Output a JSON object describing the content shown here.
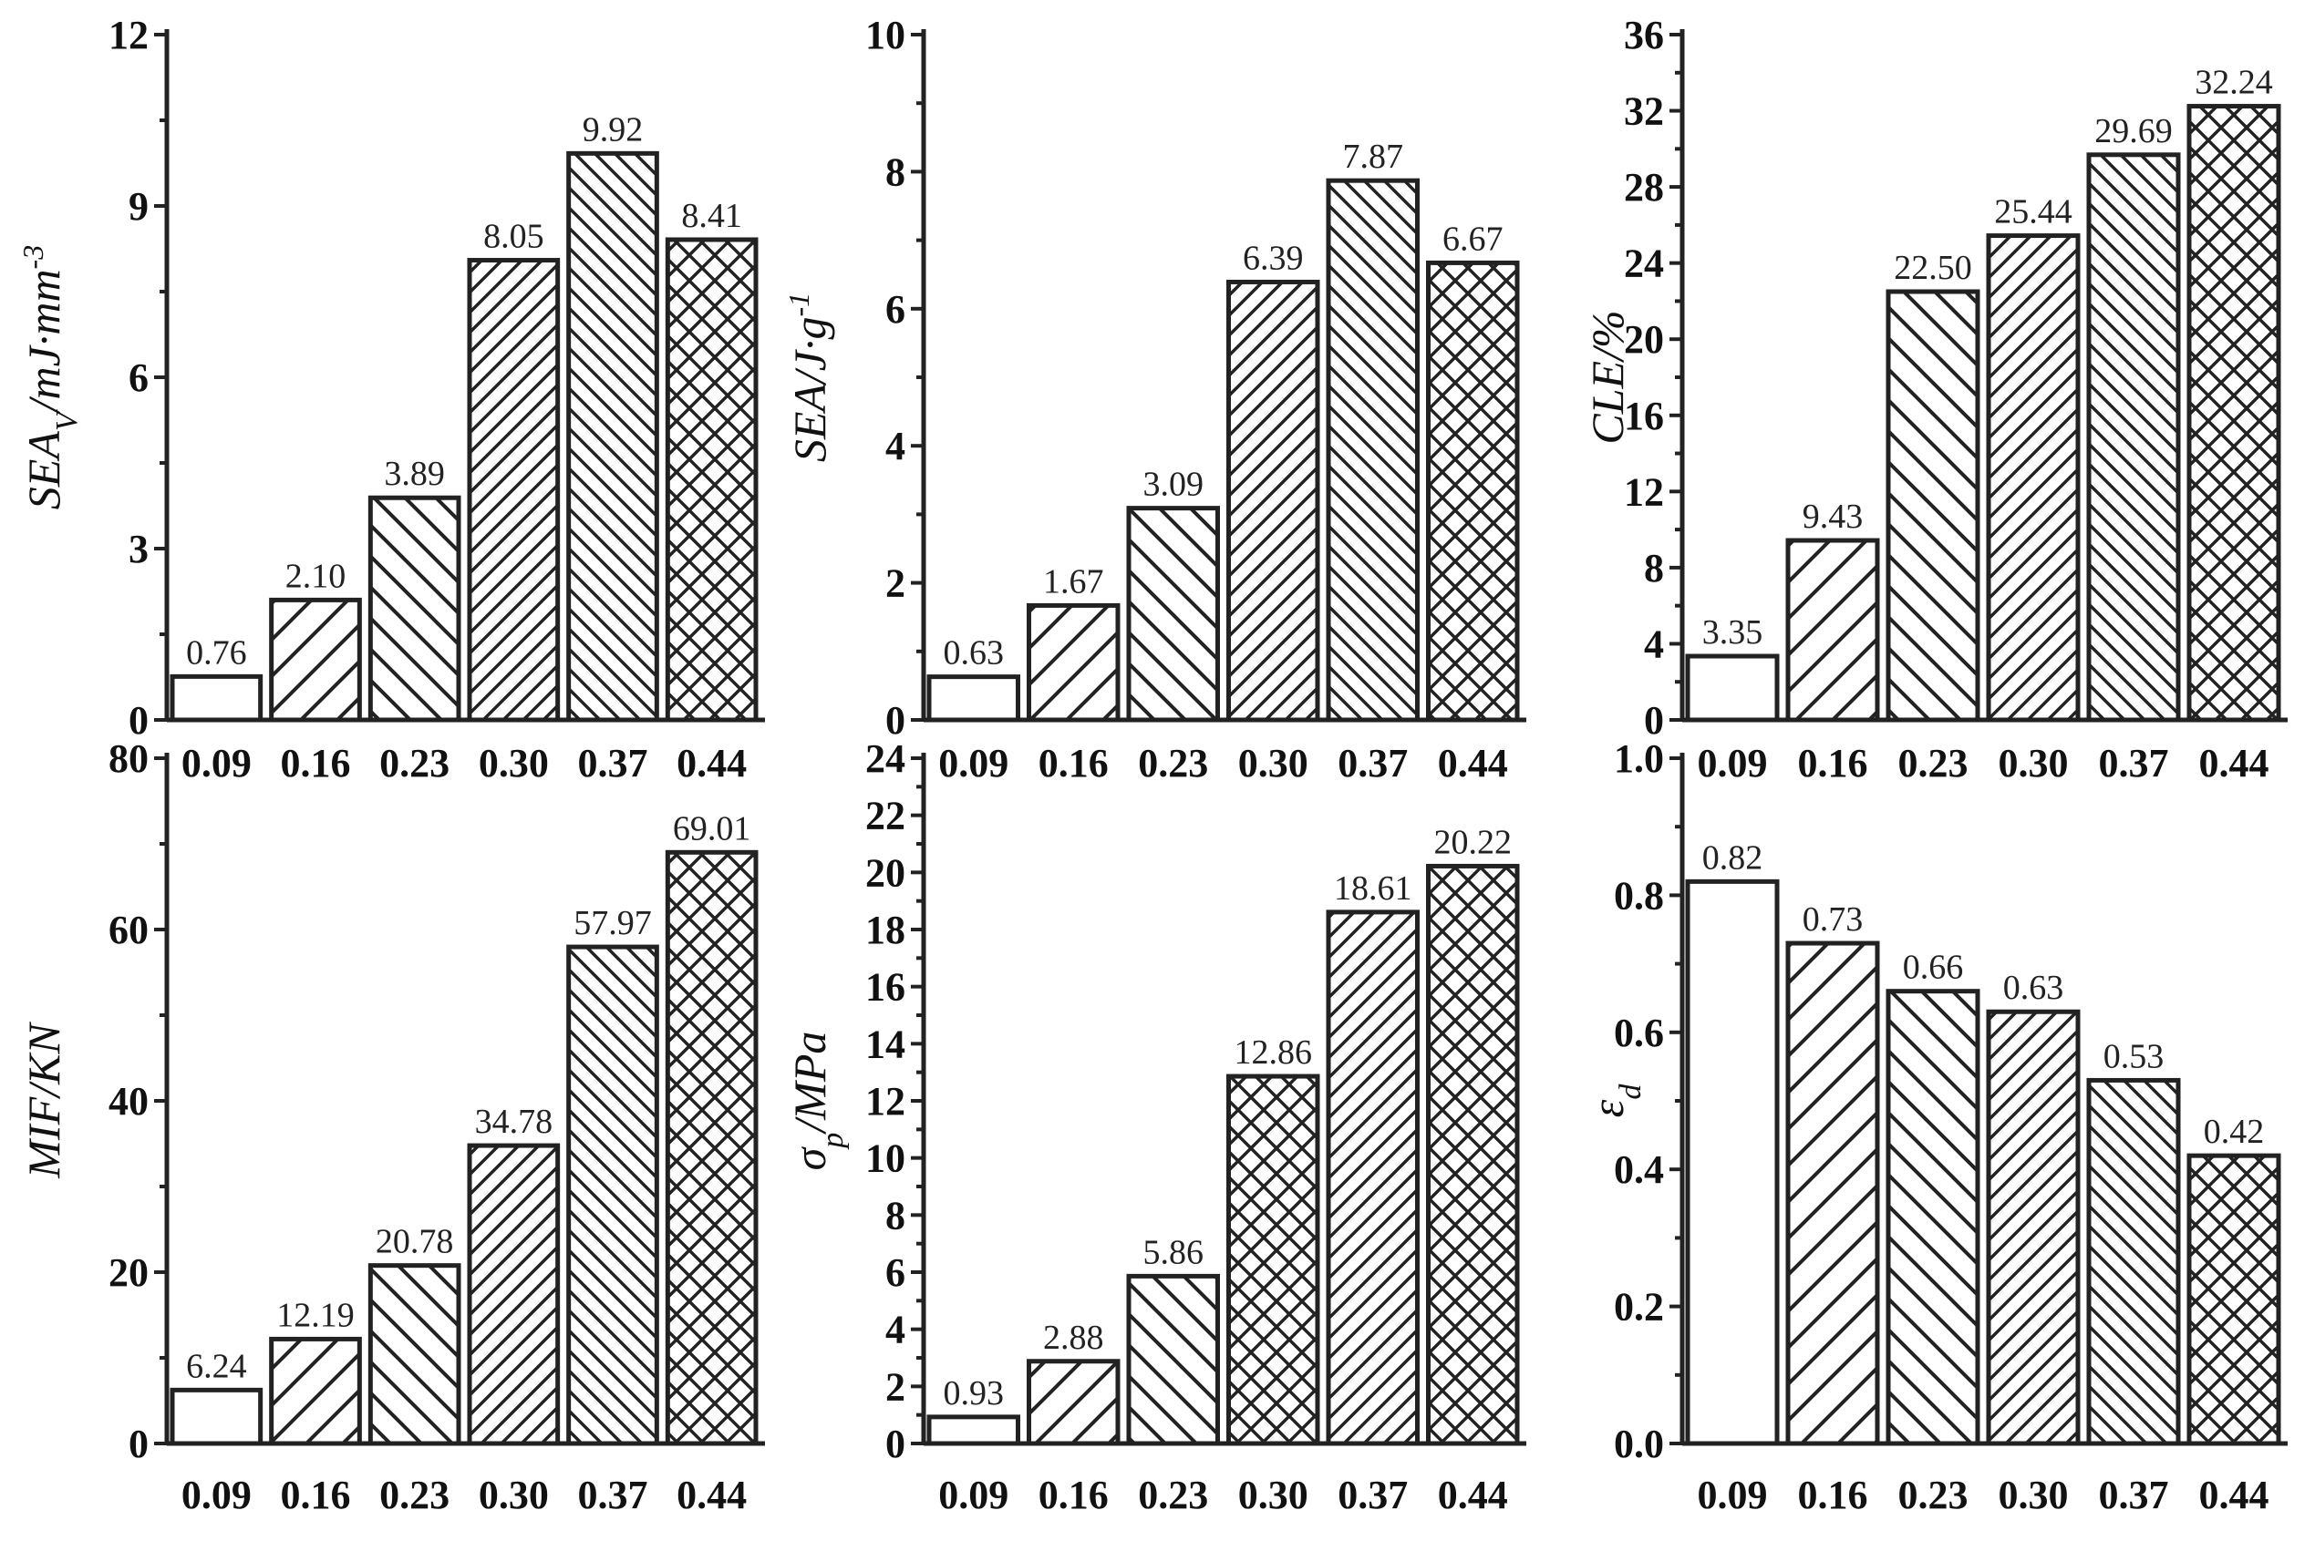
{
  "colors": {
    "ink": "#222222",
    "background": "#ffffff"
  },
  "chart_data": [
    {
      "type": "bar",
      "categories": [
        "0.09",
        "0.16",
        "0.23",
        "0.30",
        "0.37",
        "0.44"
      ],
      "values": [
        0.76,
        2.1,
        3.89,
        8.05,
        9.92,
        8.41
      ],
      "value_labels": [
        "0.76",
        "2.10",
        "3.89",
        "8.05",
        "9.92",
        "8.41"
      ],
      "ylabel": "SEA_V /mJ·mm^-3",
      "ylabel_parts": {
        "main": "SEA",
        "sub": "V",
        "unit": "/mJ·mm",
        "sup": "-3"
      },
      "ylim": [
        0,
        12
      ],
      "yticks": [
        "0",
        "3",
        "6",
        "9",
        "12"
      ],
      "patterns": [
        "none",
        "fwd-wide",
        "back-wide",
        "fwd-dense",
        "back-dense",
        "cross"
      ]
    },
    {
      "type": "bar",
      "categories": [
        "0.09",
        "0.16",
        "0.23",
        "0.30",
        "0.37",
        "0.44"
      ],
      "values": [
        0.63,
        1.67,
        3.09,
        6.39,
        7.87,
        6.67
      ],
      "value_labels": [
        "0.63",
        "1.67",
        "3.09",
        "6.39",
        "7.87",
        "6.67"
      ],
      "ylabel": "SEA/J·g^-1",
      "ylabel_parts": {
        "main": "SEA/J·g",
        "sub": "",
        "unit": "",
        "sup": "-1"
      },
      "ylim": [
        0,
        10
      ],
      "yticks": [
        "0",
        "2",
        "4",
        "6",
        "8",
        "10"
      ],
      "patterns": [
        "none",
        "fwd-wide",
        "back-wide",
        "fwd-dense",
        "back-dense",
        "cross"
      ]
    },
    {
      "type": "bar",
      "categories": [
        "0.09",
        "0.16",
        "0.23",
        "0.30",
        "0.37",
        "0.44"
      ],
      "values": [
        3.35,
        9.43,
        22.5,
        25.44,
        29.69,
        32.24
      ],
      "value_labels": [
        "3.35",
        "9.43",
        "22.50",
        "25.44",
        "29.69",
        "32.24"
      ],
      "ylabel": "CLE/%",
      "ylabel_parts": {
        "main": "CLE/%",
        "sub": "",
        "unit": "",
        "sup": ""
      },
      "ylim": [
        0,
        36
      ],
      "yticks": [
        "0",
        "4",
        "8",
        "12",
        "16",
        "20",
        "24",
        "28",
        "32",
        "36"
      ],
      "patterns": [
        "none",
        "fwd-wide",
        "back-wide",
        "fwd-dense",
        "back-dense",
        "cross"
      ]
    },
    {
      "type": "bar",
      "categories": [
        "0.09",
        "0.16",
        "0.23",
        "0.30",
        "0.37",
        "0.44"
      ],
      "values": [
        6.24,
        12.19,
        20.78,
        34.78,
        57.97,
        69.01
      ],
      "value_labels": [
        "6.24",
        "12.19",
        "20.78",
        "34.78",
        "57.97",
        "69.01"
      ],
      "ylabel": "MIF/KN",
      "ylabel_parts": {
        "main": "MIF/KN",
        "sub": "",
        "unit": "",
        "sup": ""
      },
      "ylim": [
        0,
        80
      ],
      "yticks": [
        "0",
        "20",
        "40",
        "60",
        "80"
      ],
      "patterns": [
        "none",
        "fwd-wide",
        "back-wide",
        "fwd-dense",
        "back-dense",
        "cross"
      ]
    },
    {
      "type": "bar",
      "categories": [
        "0.09",
        "0.16",
        "0.23",
        "0.30",
        "0.37",
        "0.44"
      ],
      "values": [
        0.93,
        2.88,
        5.86,
        12.86,
        18.61,
        20.22
      ],
      "value_labels": [
        "0.93",
        "2.88",
        "5.86",
        "12.86",
        "18.61",
        "20.22"
      ],
      "ylabel": "σ_p/MPa",
      "ylabel_parts": {
        "main": "σ",
        "sub": "p",
        "unit": "/MPa",
        "sup": ""
      },
      "ylim": [
        0,
        24
      ],
      "yticks": [
        "0",
        "2",
        "4",
        "6",
        "8",
        "10",
        "12",
        "14",
        "16",
        "18",
        "20",
        "22",
        "24"
      ],
      "patterns": [
        "none",
        "fwd-wide",
        "back-wide",
        "cross",
        "fwd-dense",
        "cross"
      ]
    },
    {
      "type": "bar",
      "categories": [
        "0.09",
        "0.16",
        "0.23",
        "0.30",
        "0.37",
        "0.44"
      ],
      "values": [
        0.82,
        0.73,
        0.66,
        0.63,
        0.53,
        0.42
      ],
      "value_labels": [
        "0.82",
        "0.73",
        "0.66",
        "0.63",
        "0.53",
        "0.42"
      ],
      "ylabel": "ε_d",
      "ylabel_parts": {
        "main": "ε",
        "sub": "d",
        "unit": "",
        "sup": ""
      },
      "ylim": [
        0,
        1.0
      ],
      "yticks": [
        "0.0",
        "0.2",
        "0.4",
        "0.6",
        "0.8",
        "1.0"
      ],
      "patterns": [
        "none",
        "fwd-wide",
        "back-wide",
        "fwd-dense",
        "back-dense",
        "cross"
      ]
    }
  ]
}
